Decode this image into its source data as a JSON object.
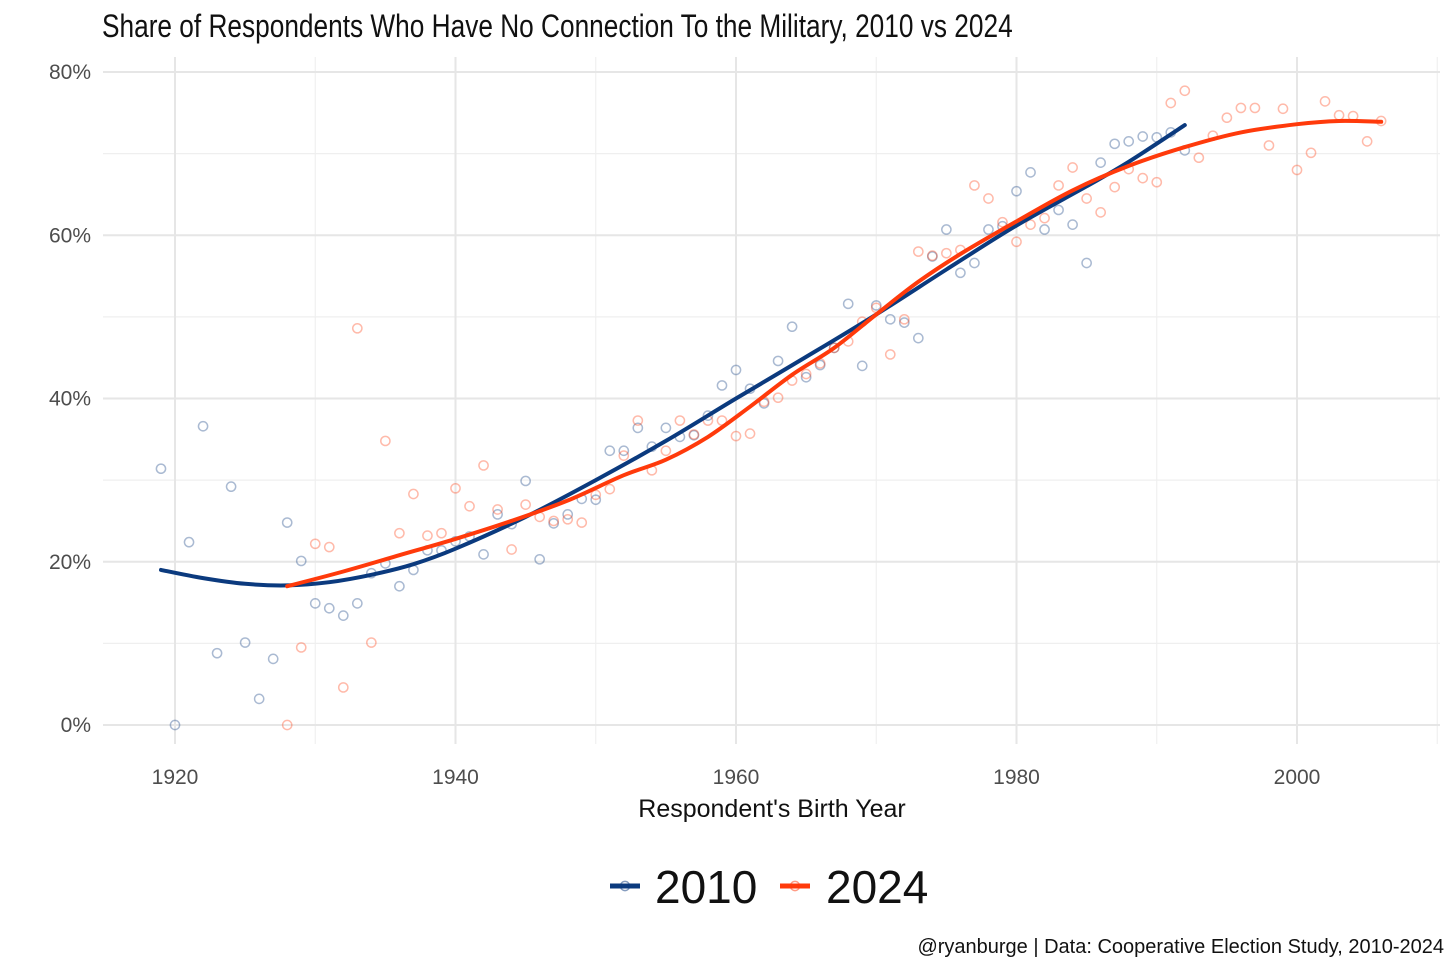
{
  "chart_data": {
    "type": "scatter",
    "title": "Share of Respondents Who Have No Connection To the Military, 2010 vs 2024",
    "xlabel": "Respondent's Birth Year",
    "ylabel": "",
    "xlim": [
      1915,
      2010
    ],
    "ylim": [
      0,
      0.8
    ],
    "x_ticks": [
      1920,
      1940,
      1960,
      1980,
      2000
    ],
    "y_ticks": [
      0,
      0.2,
      0.4,
      0.6,
      0.8
    ],
    "x_tick_labels": [
      "1920",
      "1940",
      "1960",
      "1980",
      "2000"
    ],
    "y_tick_labels": [
      "0%",
      "20%",
      "40%",
      "60%",
      "80%"
    ],
    "grid": true,
    "legend_position": "bottom",
    "caption": "@ryanburge | Data: Cooperative Election Study, 2010-2024",
    "series": [
      {
        "name": "2010",
        "color": "#0b3a7e",
        "points": [
          [
            1919,
            0.314
          ],
          [
            1920,
            0.0
          ],
          [
            1921,
            0.224
          ],
          [
            1922,
            0.366
          ],
          [
            1923,
            0.088
          ],
          [
            1924,
            0.292
          ],
          [
            1925,
            0.101
          ],
          [
            1926,
            0.032
          ],
          [
            1927,
            0.081
          ],
          [
            1928,
            0.248
          ],
          [
            1929,
            0.201
          ],
          [
            1930,
            0.149
          ],
          [
            1931,
            0.143
          ],
          [
            1932,
            0.134
          ],
          [
            1933,
            0.149
          ],
          [
            1934,
            0.186
          ],
          [
            1935,
            0.198
          ],
          [
            1936,
            0.17
          ],
          [
            1937,
            0.19
          ],
          [
            1938,
            0.214
          ],
          [
            1939,
            0.214
          ],
          [
            1940,
            0.225
          ],
          [
            1941,
            0.231
          ],
          [
            1942,
            0.209
          ],
          [
            1943,
            0.258
          ],
          [
            1944,
            0.246
          ],
          [
            1945,
            0.299
          ],
          [
            1946,
            0.203
          ],
          [
            1947,
            0.247
          ],
          [
            1948,
            0.258
          ],
          [
            1949,
            0.277
          ],
          [
            1950,
            0.276
          ],
          [
            1951,
            0.336
          ],
          [
            1952,
            0.336
          ],
          [
            1953,
            0.364
          ],
          [
            1954,
            0.341
          ],
          [
            1955,
            0.364
          ],
          [
            1956,
            0.353
          ],
          [
            1957,
            0.355
          ],
          [
            1958,
            0.379
          ],
          [
            1959,
            0.416
          ],
          [
            1960,
            0.435
          ],
          [
            1961,
            0.412
          ],
          [
            1962,
            0.394
          ],
          [
            1963,
            0.446
          ],
          [
            1964,
            0.488
          ],
          [
            1965,
            0.426
          ],
          [
            1966,
            0.441
          ],
          [
            1967,
            0.462
          ],
          [
            1968,
            0.516
          ],
          [
            1969,
            0.44
          ],
          [
            1970,
            0.514
          ],
          [
            1971,
            0.497
          ],
          [
            1972,
            0.493
          ],
          [
            1973,
            0.474
          ],
          [
            1974,
            0.574
          ],
          [
            1975,
            0.607
          ],
          [
            1976,
            0.554
          ],
          [
            1977,
            0.566
          ],
          [
            1978,
            0.607
          ],
          [
            1979,
            0.611
          ],
          [
            1980,
            0.654
          ],
          [
            1981,
            0.677
          ],
          [
            1982,
            0.607
          ],
          [
            1983,
            0.631
          ],
          [
            1984,
            0.613
          ],
          [
            1985,
            0.566
          ],
          [
            1986,
            0.689
          ],
          [
            1987,
            0.712
          ],
          [
            1988,
            0.715
          ],
          [
            1989,
            0.721
          ],
          [
            1990,
            0.72
          ],
          [
            1991,
            0.726
          ],
          [
            1992,
            0.704
          ]
        ],
        "trend": [
          [
            1919,
            0.19
          ],
          [
            1922,
            0.18
          ],
          [
            1925,
            0.173
          ],
          [
            1928,
            0.171
          ],
          [
            1931,
            0.175
          ],
          [
            1934,
            0.184
          ],
          [
            1937,
            0.197
          ],
          [
            1940,
            0.216
          ],
          [
            1945,
            0.255
          ],
          [
            1950,
            0.3
          ],
          [
            1955,
            0.348
          ],
          [
            1960,
            0.4
          ],
          [
            1965,
            0.451
          ],
          [
            1970,
            0.503
          ],
          [
            1975,
            0.558
          ],
          [
            1980,
            0.612
          ],
          [
            1985,
            0.66
          ],
          [
            1988,
            0.69
          ],
          [
            1992,
            0.735
          ]
        ]
      },
      {
        "name": "2024",
        "color": "#ff3a0b",
        "points": [
          [
            1928,
            0.0
          ],
          [
            1929,
            0.095
          ],
          [
            1930,
            0.222
          ],
          [
            1931,
            0.218
          ],
          [
            1932,
            0.046
          ],
          [
            1933,
            0.486
          ],
          [
            1934,
            0.101
          ],
          [
            1935,
            0.348
          ],
          [
            1936,
            0.235
          ],
          [
            1937,
            0.283
          ],
          [
            1938,
            0.232
          ],
          [
            1939,
            0.235
          ],
          [
            1940,
            0.29
          ],
          [
            1941,
            0.268
          ],
          [
            1942,
            0.318
          ],
          [
            1943,
            0.264
          ],
          [
            1944,
            0.215
          ],
          [
            1945,
            0.27
          ],
          [
            1946,
            0.255
          ],
          [
            1947,
            0.25
          ],
          [
            1948,
            0.252
          ],
          [
            1949,
            0.248
          ],
          [
            1950,
            0.282
          ],
          [
            1951,
            0.289
          ],
          [
            1952,
            0.33
          ],
          [
            1953,
            0.373
          ],
          [
            1954,
            0.312
          ],
          [
            1955,
            0.336
          ],
          [
            1956,
            0.373
          ],
          [
            1957,
            0.356
          ],
          [
            1958,
            0.373
          ],
          [
            1959,
            0.373
          ],
          [
            1960,
            0.354
          ],
          [
            1961,
            0.357
          ],
          [
            1962,
            0.396
          ],
          [
            1963,
            0.401
          ],
          [
            1964,
            0.422
          ],
          [
            1965,
            0.43
          ],
          [
            1966,
            0.443
          ],
          [
            1967,
            0.462
          ],
          [
            1968,
            0.47
          ],
          [
            1969,
            0.494
          ],
          [
            1970,
            0.511
          ],
          [
            1971,
            0.454
          ],
          [
            1972,
            0.497
          ],
          [
            1973,
            0.58
          ],
          [
            1974,
            0.575
          ],
          [
            1975,
            0.578
          ],
          [
            1976,
            0.582
          ],
          [
            1977,
            0.661
          ],
          [
            1978,
            0.645
          ],
          [
            1979,
            0.616
          ],
          [
            1980,
            0.592
          ],
          [
            1981,
            0.613
          ],
          [
            1982,
            0.621
          ],
          [
            1983,
            0.661
          ],
          [
            1984,
            0.683
          ],
          [
            1985,
            0.645
          ],
          [
            1986,
            0.628
          ],
          [
            1987,
            0.659
          ],
          [
            1988,
            0.681
          ],
          [
            1989,
            0.67
          ],
          [
            1990,
            0.665
          ],
          [
            1991,
            0.762
          ],
          [
            1992,
            0.777
          ],
          [
            1993,
            0.695
          ],
          [
            1994,
            0.722
          ],
          [
            1995,
            0.744
          ],
          [
            1996,
            0.756
          ],
          [
            1997,
            0.756
          ],
          [
            1998,
            0.71
          ],
          [
            1999,
            0.755
          ],
          [
            2000,
            0.68
          ],
          [
            2001,
            0.701
          ],
          [
            2002,
            0.764
          ],
          [
            2003,
            0.747
          ],
          [
            2004,
            0.746
          ],
          [
            2005,
            0.715
          ],
          [
            2006,
            0.74
          ]
        ],
        "trend": [
          [
            1928,
            0.17
          ],
          [
            1932,
            0.188
          ],
          [
            1936,
            0.208
          ],
          [
            1940,
            0.228
          ],
          [
            1944,
            0.25
          ],
          [
            1948,
            0.275
          ],
          [
            1952,
            0.306
          ],
          [
            1955,
            0.325
          ],
          [
            1958,
            0.353
          ],
          [
            1961,
            0.39
          ],
          [
            1964,
            0.429
          ],
          [
            1967,
            0.462
          ],
          [
            1970,
            0.503
          ],
          [
            1973,
            0.543
          ],
          [
            1976,
            0.577
          ],
          [
            1980,
            0.617
          ],
          [
            1984,
            0.655
          ],
          [
            1988,
            0.685
          ],
          [
            1992,
            0.708
          ],
          [
            1996,
            0.726
          ],
          [
            2000,
            0.736
          ],
          [
            2003,
            0.74
          ],
          [
            2006,
            0.739
          ]
        ]
      }
    ]
  }
}
